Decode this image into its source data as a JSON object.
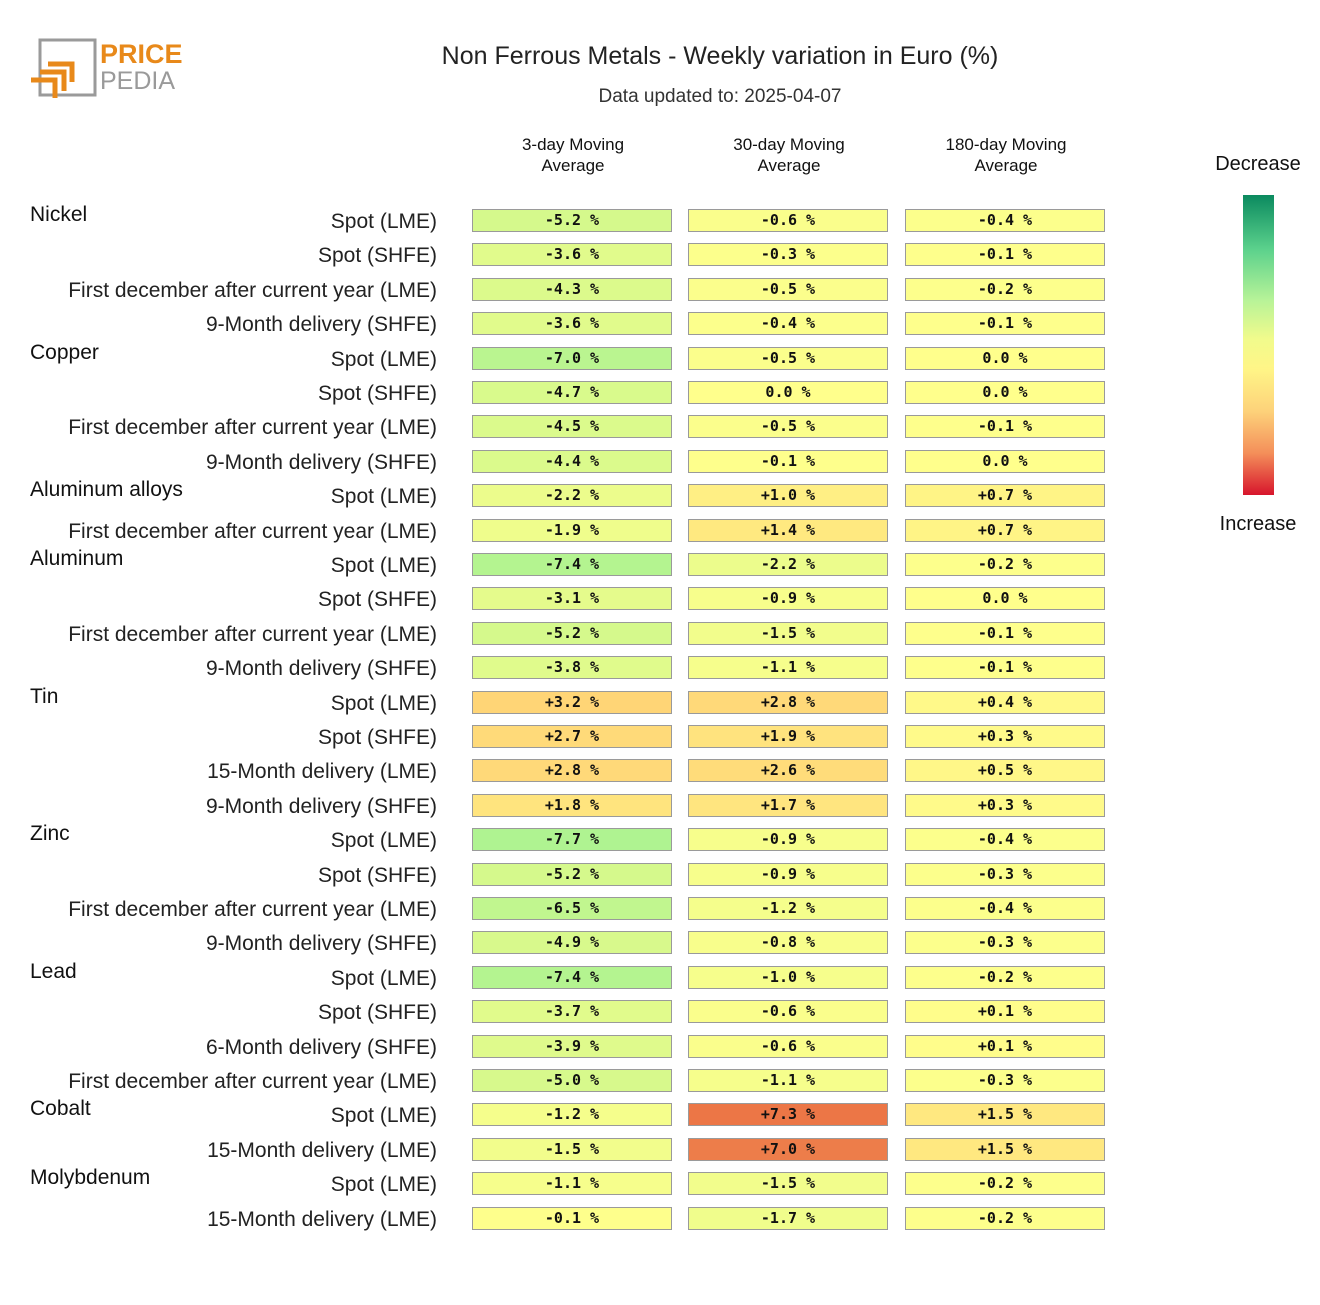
{
  "header": {
    "logo_text_1": "PRICE",
    "logo_text_2": "PEDIA",
    "title": "Non Ferrous Metals - Weekly variation in Euro (%)",
    "subtitle": "Data updated to: 2025-04-07"
  },
  "legend": {
    "top_label": "Decrease",
    "bottom_label": "Increase"
  },
  "colors": {
    "brand_orange": "#e8891a",
    "brand_gray": "#9a9a9a"
  },
  "chart_data": {
    "type": "table",
    "title": "Non Ferrous Metals - Weekly variation in Euro (%)",
    "columns": [
      "3-day Moving\nAverage",
      "30-day Moving\nAverage",
      "180-day Moving\nAverage"
    ],
    "color_scale": {
      "min": -15,
      "max": 15,
      "low_label": "Decrease",
      "high_label": "Increase"
    },
    "groups": [
      {
        "name": "Nickel",
        "rows": [
          {
            "label": "Spot (LME)",
            "values": [
              -5.2,
              -0.6,
              -0.4
            ]
          },
          {
            "label": "Spot (SHFE)",
            "values": [
              -3.6,
              -0.3,
              -0.1
            ]
          },
          {
            "label": "First december after current year (LME)",
            "values": [
              -4.3,
              -0.5,
              -0.2
            ]
          },
          {
            "label": "9-Month delivery (SHFE)",
            "values": [
              -3.6,
              -0.4,
              -0.1
            ]
          }
        ]
      },
      {
        "name": "Copper",
        "rows": [
          {
            "label": "Spot (LME)",
            "values": [
              -7.0,
              -0.5,
              0.0
            ]
          },
          {
            "label": "Spot (SHFE)",
            "values": [
              -4.7,
              0.0,
              0.0
            ]
          },
          {
            "label": "First december after current year (LME)",
            "values": [
              -4.5,
              -0.5,
              -0.1
            ]
          },
          {
            "label": "9-Month delivery (SHFE)",
            "values": [
              -4.4,
              -0.1,
              0.0
            ]
          }
        ]
      },
      {
        "name": "Aluminum alloys",
        "rows": [
          {
            "label": "Spot (LME)",
            "values": [
              -2.2,
              1.0,
              0.7
            ]
          },
          {
            "label": "First december after current year (LME)",
            "values": [
              -1.9,
              1.4,
              0.7
            ]
          }
        ]
      },
      {
        "name": "Aluminum",
        "rows": [
          {
            "label": "Spot (LME)",
            "values": [
              -7.4,
              -2.2,
              -0.2
            ]
          },
          {
            "label": "Spot (SHFE)",
            "values": [
              -3.1,
              -0.9,
              0.0
            ]
          },
          {
            "label": "First december after current year (LME)",
            "values": [
              -5.2,
              -1.5,
              -0.1
            ]
          },
          {
            "label": "9-Month delivery (SHFE)",
            "values": [
              -3.8,
              -1.1,
              -0.1
            ]
          }
        ]
      },
      {
        "name": "Tin",
        "rows": [
          {
            "label": "Spot (LME)",
            "values": [
              3.2,
              2.8,
              0.4
            ]
          },
          {
            "label": "Spot (SHFE)",
            "values": [
              2.7,
              1.9,
              0.3
            ]
          },
          {
            "label": "15-Month delivery (LME)",
            "values": [
              2.8,
              2.6,
              0.5
            ]
          },
          {
            "label": "9-Month delivery (SHFE)",
            "values": [
              1.8,
              1.7,
              0.3
            ]
          }
        ]
      },
      {
        "name": "Zinc",
        "rows": [
          {
            "label": "Spot (LME)",
            "values": [
              -7.7,
              -0.9,
              -0.4
            ]
          },
          {
            "label": "Spot (SHFE)",
            "values": [
              -5.2,
              -0.9,
              -0.3
            ]
          },
          {
            "label": "First december after current year (LME)",
            "values": [
              -6.5,
              -1.2,
              -0.4
            ]
          },
          {
            "label": "9-Month delivery (SHFE)",
            "values": [
              -4.9,
              -0.8,
              -0.3
            ]
          }
        ]
      },
      {
        "name": "Lead",
        "rows": [
          {
            "label": "Spot (LME)",
            "values": [
              -7.4,
              -1.0,
              -0.2
            ]
          },
          {
            "label": "Spot (SHFE)",
            "values": [
              -3.7,
              -0.6,
              0.1
            ]
          },
          {
            "label": "6-Month delivery (SHFE)",
            "values": [
              -3.9,
              -0.6,
              0.1
            ]
          },
          {
            "label": "First december after current year (LME)",
            "values": [
              -5.0,
              -1.1,
              -0.3
            ]
          }
        ]
      },
      {
        "name": "Cobalt",
        "rows": [
          {
            "label": "Spot (LME)",
            "values": [
              -1.2,
              7.3,
              1.5
            ]
          },
          {
            "label": "15-Month delivery (LME)",
            "values": [
              -1.5,
              7.0,
              1.5
            ]
          }
        ]
      },
      {
        "name": "Molybdenum",
        "rows": [
          {
            "label": "Spot (LME)",
            "values": [
              -1.1,
              -1.5,
              -0.2
            ]
          },
          {
            "label": "15-Month delivery (LME)",
            "values": [
              -0.1,
              -1.7,
              -0.2
            ]
          }
        ]
      }
    ]
  }
}
